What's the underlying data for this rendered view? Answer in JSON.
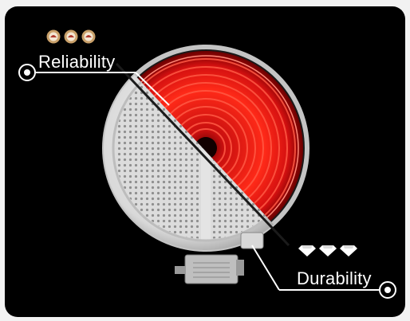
{
  "labels": {
    "reliability": "Reliability",
    "durability": "Durability"
  },
  "icons": {
    "reliability": [
      "badge-icon",
      "badge-icon",
      "badge-icon"
    ],
    "durability": [
      "diamond-icon",
      "diamond-icon",
      "diamond-icon"
    ]
  },
  "colors": {
    "background": "#000000",
    "heating_red": "#e51010",
    "ceramic": "#e8e8e8",
    "badge_gold": "#c9a06a",
    "badge_red": "#b03a2e",
    "diamond": "#ffffff"
  }
}
